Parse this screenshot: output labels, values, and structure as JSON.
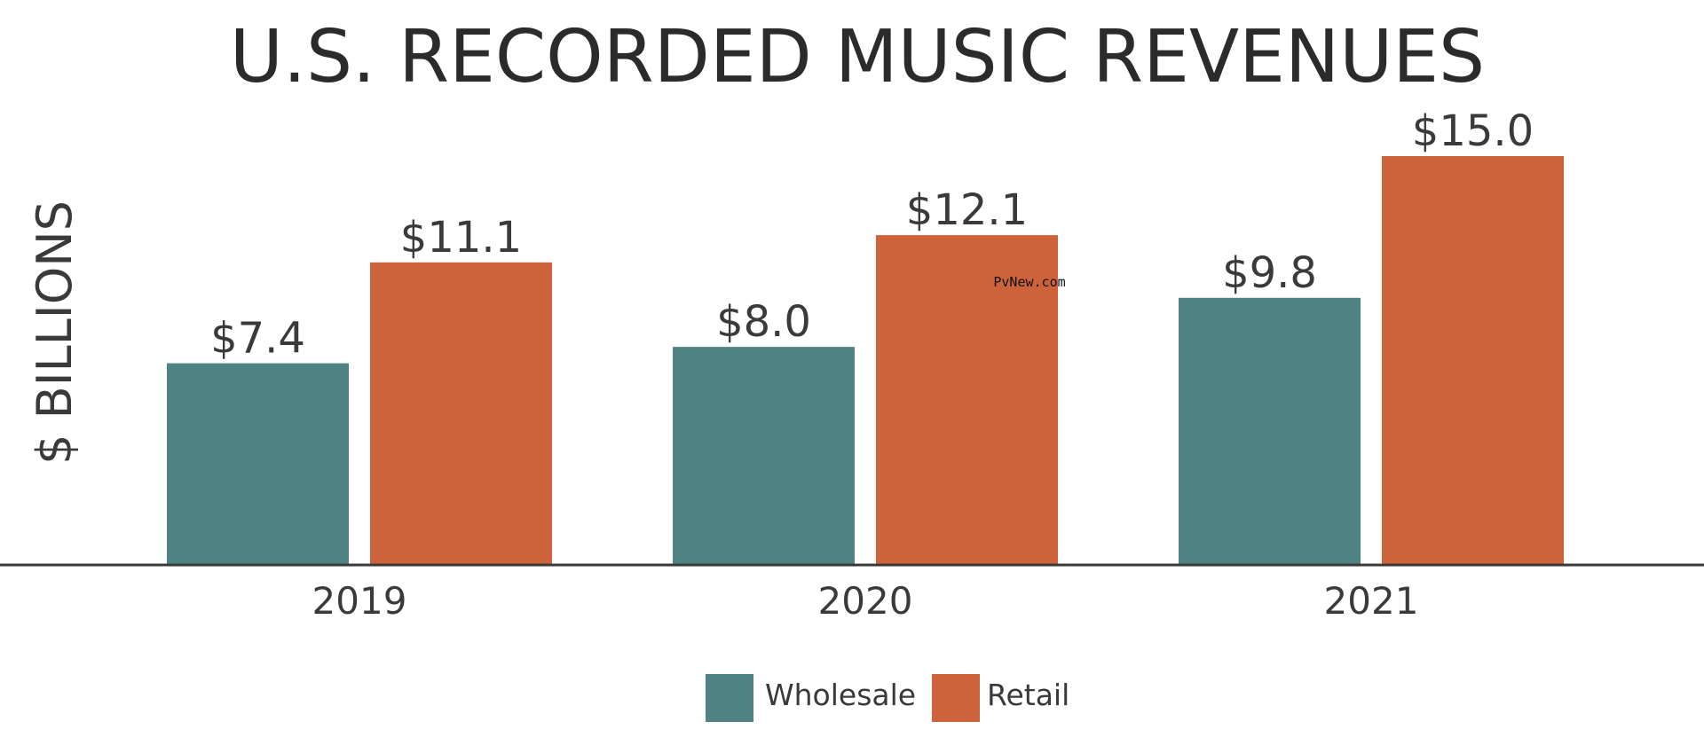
{
  "chart_data": {
    "type": "bar",
    "title": "U.S. RECORDED MUSIC REVENUES",
    "ylabel": "$ BILLIONS",
    "xlabel": "",
    "categories": [
      "2019",
      "2020",
      "2021"
    ],
    "series": [
      {
        "name": "Wholesale",
        "values": [
          7.4,
          8.0,
          9.8
        ],
        "labels": [
          "$7.4",
          "$8.0",
          "$9.8"
        ],
        "color": "#4f8282"
      },
      {
        "name": "Retail",
        "values": [
          11.1,
          12.1,
          15.0
        ],
        "labels": [
          "$11.1",
          "$12.1",
          "$15.0"
        ],
        "color": "#cd633b"
      }
    ],
    "ylim": [
      0,
      15
    ],
    "grid": false,
    "legend_position": "bottom-center"
  },
  "watermark": "PvNew.com",
  "colors": {
    "text": "#3a3a3a",
    "axis": "#3a3a3a",
    "background": "#ffffff"
  }
}
